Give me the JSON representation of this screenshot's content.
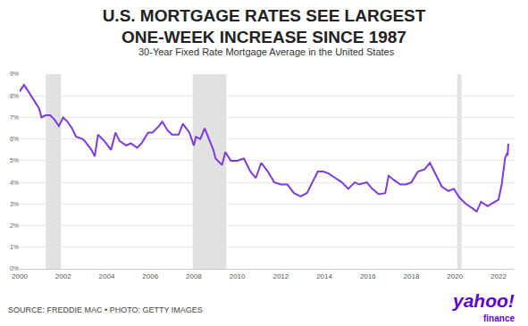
{
  "chart_data": {
    "type": "line",
    "title": "U.S. MORTGAGE RATES SEE LARGEST\nONE-WEEK INCREASE SINCE 1987",
    "subtitle": "30-Year Fixed Rate Mortgage Average in the United States",
    "source": "SOURCE: FREDDIE MAC • PHOTO: GETTY IMAGES",
    "logo": "yahoo!",
    "logo_subtext": "finance",
    "color": "#7d3bdc",
    "grid": true,
    "x": [
      2000.0,
      2000.2,
      2000.4,
      2000.6,
      2000.9,
      2001.0,
      2001.2,
      2001.4,
      2001.6,
      2001.8,
      2002.0,
      2002.2,
      2002.4,
      2002.6,
      2002.9,
      2003.0,
      2003.3,
      2003.45,
      2003.6,
      2003.9,
      2004.2,
      2004.4,
      2004.6,
      2004.9,
      2005.1,
      2005.4,
      2005.6,
      2005.9,
      2006.1,
      2006.4,
      2006.55,
      2006.8,
      2007.0,
      2007.3,
      2007.5,
      2007.8,
      2008.0,
      2008.1,
      2008.3,
      2008.5,
      2008.7,
      2008.9,
      2009.0,
      2009.3,
      2009.45,
      2009.7,
      2010.0,
      2010.3,
      2010.6,
      2010.85,
      2011.1,
      2011.4,
      2011.7,
      2012.0,
      2012.3,
      2012.6,
      2012.9,
      2013.2,
      2013.45,
      2013.7,
      2013.95,
      2014.2,
      2014.5,
      2014.8,
      2015.1,
      2015.4,
      2015.6,
      2015.95,
      2016.2,
      2016.5,
      2016.8,
      2016.95,
      2017.2,
      2017.5,
      2017.75,
      2018.0,
      2018.3,
      2018.6,
      2018.85,
      2019.1,
      2019.4,
      2019.7,
      2019.95,
      2020.2,
      2020.5,
      2020.8,
      2021.0,
      2021.2,
      2021.5,
      2021.75,
      2022.0,
      2022.15,
      2022.3,
      2022.38,
      2022.42,
      2022.45
    ],
    "values": [
      8.2,
      8.5,
      8.2,
      7.9,
      7.4,
      7.0,
      7.1,
      7.1,
      6.9,
      6.6,
      7.0,
      6.8,
      6.5,
      6.1,
      6.0,
      5.9,
      5.5,
      5.2,
      6.2,
      5.9,
      5.5,
      6.3,
      5.9,
      5.7,
      5.8,
      5.6,
      5.8,
      6.3,
      6.3,
      6.6,
      6.8,
      6.4,
      6.2,
      6.2,
      6.7,
      6.3,
      5.7,
      6.1,
      6.0,
      6.5,
      6.0,
      5.5,
      5.1,
      4.8,
      5.4,
      5.0,
      5.0,
      5.1,
      4.5,
      4.2,
      4.9,
      4.5,
      4.0,
      3.9,
      3.9,
      3.5,
      3.35,
      3.5,
      4.0,
      4.5,
      4.5,
      4.4,
      4.2,
      4.0,
      3.7,
      4.0,
      3.9,
      4.0,
      3.7,
      3.45,
      3.5,
      4.3,
      4.1,
      3.9,
      3.9,
      4.0,
      4.5,
      4.6,
      4.9,
      4.4,
      3.8,
      3.6,
      3.7,
      3.3,
      3.0,
      2.8,
      2.65,
      3.1,
      2.9,
      3.05,
      3.2,
      3.9,
      5.1,
      5.3,
      5.25,
      5.78
    ],
    "shaded_ranges": [
      [
        2001.2,
        2001.9
      ],
      [
        2007.95,
        2009.5
      ],
      [
        2020.1,
        2020.3
      ]
    ],
    "xlim": [
      2000,
      2022.7
    ],
    "xticks": [
      2000,
      2002,
      2004,
      2006,
      2008,
      2010,
      2012,
      2014,
      2016,
      2018,
      2020,
      2022
    ],
    "ylim": [
      0,
      9
    ],
    "yticks": [
      {
        "value": 0,
        "label": "0%"
      },
      {
        "value": 1,
        "label": "1%"
      },
      {
        "value": 2,
        "label": "2%"
      },
      {
        "value": 3,
        "label": "3%"
      },
      {
        "value": 4,
        "label": "4%"
      },
      {
        "value": 5,
        "label": "5%"
      },
      {
        "value": 6,
        "label": "6%"
      },
      {
        "value": 7,
        "label": "7%"
      },
      {
        "value": 8,
        "label": "8%"
      },
      {
        "value": 9,
        "label": "9%"
      }
    ]
  }
}
